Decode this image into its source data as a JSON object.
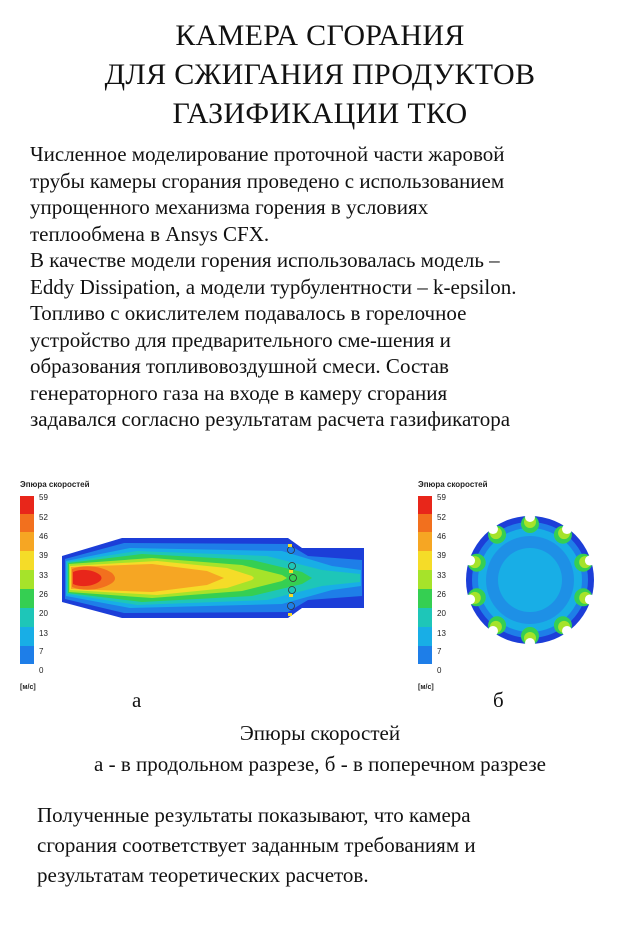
{
  "title": {
    "lines": [
      "КАМЕРА СГОРАНИЯ",
      "ДЛЯ СЖИГАНИЯ ПРОДУКТОВ",
      "ГАЗИФИКАЦИИ ТКО"
    ]
  },
  "intro_lines": [
    "Численное моделирование проточной части жаровой",
    "трубы камеры сгорания проведено с использованием",
    "упрощенного механизма горения в условиях",
    "теплообмена в Ansys CFX.",
    "В качестве модели горения использовалась модель –",
    "Eddy Dissipation, а модели турбулентности – k-epsilon.",
    "Топливо с окислителем подавалось в горелочное",
    "устройство для предварительного сме-шения и",
    "образования топливовоздушной смеси. Состав",
    "генераторного газа на входе в камеру сгорания",
    "задавался согласно результатам расчета газификатора"
  ],
  "legend": {
    "title": "Эпюра скоростей",
    "ticks": [
      "59",
      "52",
      "46",
      "39",
      "33",
      "26",
      "20",
      "13",
      "7",
      "0"
    ],
    "unit": "[м/с]",
    "colors": [
      "#e8261a",
      "#f2701e",
      "#f6a623",
      "#f5dc28",
      "#a6e32a",
      "#35cf52",
      "#1ec6b8",
      "#18aee6",
      "#1e7ee8",
      "#1c3ed8"
    ]
  },
  "figures": {
    "label_a": "а",
    "label_b": "б"
  },
  "caption": {
    "line1": "Эпюры скоростей",
    "line2": "а - в продольном разрезе, б - в поперечном разрезе"
  },
  "conclusion_lines": [
    "Полученные результаты показывают, что камера",
    "сгорания соответствует заданным требованиям и",
    "результатам теоретических расчетов."
  ]
}
